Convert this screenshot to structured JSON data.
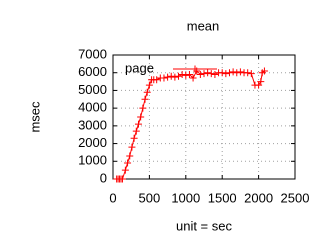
{
  "chart_data": {
    "type": "line",
    "title": "mean",
    "x_label": "unit = sec",
    "y_label": "msec",
    "x": [
      50,
      70,
      90,
      110,
      130,
      170,
      200,
      230,
      260,
      290,
      320,
      350,
      380,
      410,
      440,
      470,
      500,
      530,
      560,
      600,
      650,
      700,
      750,
      800,
      850,
      900,
      950,
      1000,
      1050,
      1100,
      1150,
      1200,
      1250,
      1300,
      1350,
      1400,
      1450,
      1500,
      1550,
      1600,
      1650,
      1700,
      1750,
      1800,
      1850,
      1900,
      1950,
      2000,
      2030,
      2050,
      2080
    ],
    "series": [
      {
        "name": "page",
        "color": "#ff0000",
        "values": [
          0,
          0,
          0,
          0,
          0,
          500,
          900,
          1300,
          1800,
          2300,
          2700,
          3100,
          3500,
          4000,
          4500,
          4900,
          5300,
          5600,
          5600,
          5600,
          5700,
          5700,
          5750,
          5800,
          5750,
          5800,
          5900,
          5850,
          5900,
          5700,
          6100,
          5900,
          5950,
          6000,
          5950,
          5900,
          6000,
          6000,
          5950,
          6000,
          6050,
          6000,
          6050,
          6000,
          6000,
          5950,
          5300,
          5300,
          5500,
          6000,
          6100
        ]
      }
    ],
    "xlim": [
      0,
      2500
    ],
    "xticks": [
      0,
      500,
      1000,
      1500,
      2000,
      2500
    ],
    "ylim": [
      0,
      7000
    ],
    "yticks": [
      0,
      1000,
      2000,
      3000,
      4000,
      5000,
      6000,
      7000
    ],
    "grid": true,
    "legend": "top-left"
  }
}
